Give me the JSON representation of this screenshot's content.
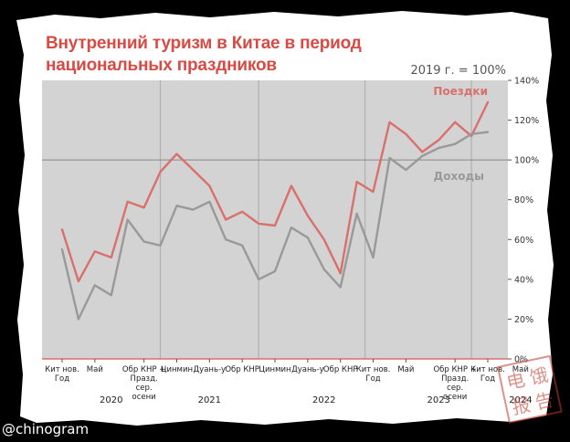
{
  "title_line1": "Внутренний туризм в Китае в период",
  "title_line2": "национальных праздников",
  "subtitle": "2019 г. = 100%",
  "watermark": "@chinogram",
  "stamp_chars": [
    "电",
    "饿",
    "报",
    "告"
  ],
  "colors": {
    "trips": "#d9706c",
    "income": "#999999",
    "plot_bg": "#d3d3d3",
    "title": "#d94a44",
    "grid": "#b0b0b0",
    "baseline": "#888888"
  },
  "chart_data": {
    "type": "line",
    "title": "Внутренний туризм в Китае в период национальных праздников",
    "subtitle": "2019 г. = 100%",
    "x_tick_labels": [
      "Кит нов.\nГод",
      "Май",
      "Обр КНР +\nПразд.\nсер.\nосени",
      "Цинмин",
      "Дуань-у",
      "Обр КНР",
      "Цинмин",
      "Дуань-у",
      "Обр КНР",
      "Кит нов.\nГод",
      "Май",
      "Обр КНР +\nПразд.\nсер.\nосени",
      "Кит нов.\nГод",
      "Май"
    ],
    "x_tick_index": [
      0,
      2,
      5,
      7,
      9,
      11,
      13,
      15,
      17,
      19,
      21,
      24,
      26,
      28
    ],
    "year_labels": [
      {
        "label": "2020",
        "index": 3
      },
      {
        "label": "2021",
        "index": 9
      },
      {
        "label": "2022",
        "index": 16
      },
      {
        "label": "2023",
        "index": 23
      },
      {
        "label": "2024",
        "index": 28
      }
    ],
    "year_dividers": [
      6,
      12,
      18.5,
      25
    ],
    "y_ticks": [
      0,
      20,
      40,
      60,
      80,
      100,
      120,
      140
    ],
    "y_tick_format": "{v}%",
    "ylim": [
      0,
      140
    ],
    "reference_line": 100,
    "series": [
      {
        "name": "Поездки",
        "color": "#d9706c",
        "values": [
          65,
          39,
          54,
          51,
          79,
          76,
          94,
          103,
          95,
          87,
          70,
          74,
          68,
          67,
          87,
          72,
          60,
          43,
          89,
          84,
          119,
          113,
          104,
          110,
          119,
          112,
          129
        ]
      },
      {
        "name": "Доходы",
        "color": "#999999",
        "values": [
          55,
          20,
          37,
          32,
          70,
          59,
          57,
          77,
          75,
          79,
          60,
          57,
          40,
          44,
          66,
          61,
          45,
          36,
          73,
          51,
          101,
          95,
          102,
          106,
          108,
          113,
          114
        ]
      }
    ],
    "legend": "inline-right"
  }
}
